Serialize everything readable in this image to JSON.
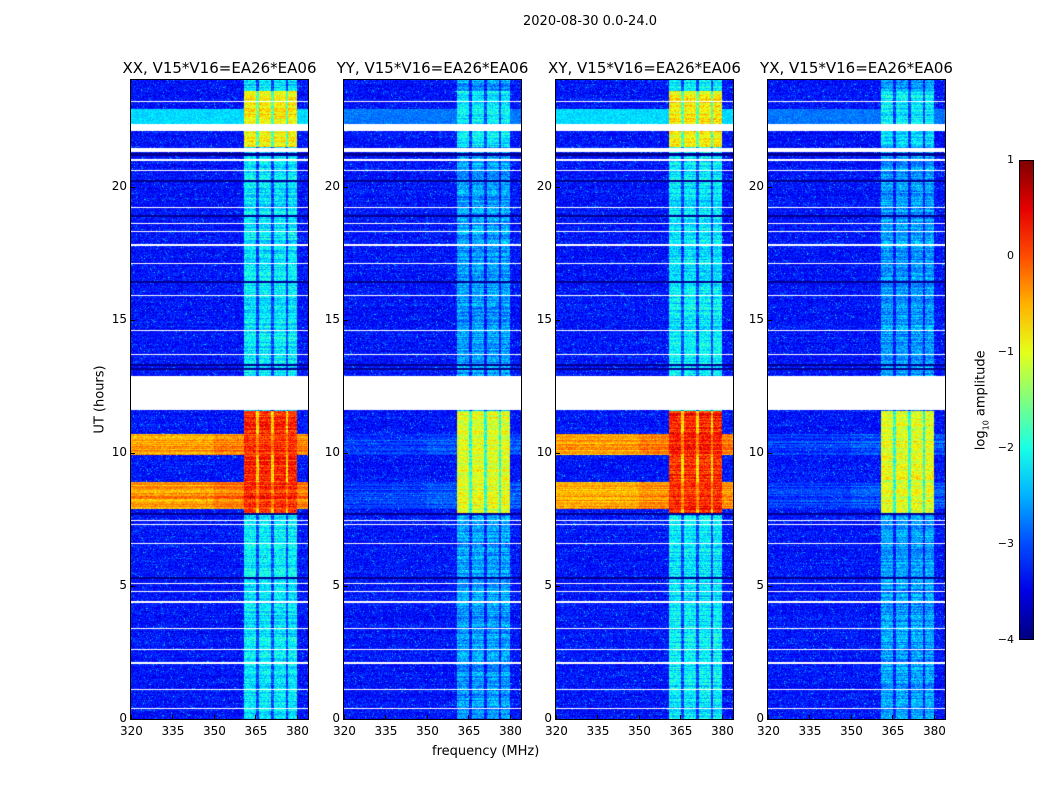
{
  "figure_title": "2020-08-30 0.0-24.0",
  "chart_data": {
    "type": "heatmap",
    "title": "2020-08-30 0.0-24.0",
    "xlabel": "frequency (MHz)",
    "ylabel": "UT (hours)",
    "xlim": [
      320,
      384
    ],
    "ylim": [
      0,
      24
    ],
    "xticks": [
      320,
      335,
      350,
      365,
      380
    ],
    "xtick_labels": [
      "320",
      "335",
      "350",
      "365",
      "380"
    ],
    "yticks": [
      0,
      5,
      10,
      15,
      20
    ],
    "ytick_labels": [
      "0",
      "5",
      "10",
      "15",
      "20"
    ],
    "colorbar": {
      "label_prefix": "log",
      "label_sub": "10",
      "label_suffix": " amplitude",
      "range": [
        -4,
        1
      ],
      "ticks": [
        1,
        0,
        -1,
        -2,
        -3,
        -4
      ],
      "tick_labels": [
        "1",
        "0",
        "−1",
        "−2",
        "−3",
        "−4"
      ],
      "colormap": "jet"
    },
    "background_level": -3.3,
    "rfi_band_mhz": [
      361,
      380
    ],
    "flagged_hours": [
      [
        11.6,
        12.9
      ],
      [
        22.1,
        22.35
      ],
      [
        21.3,
        21.45
      ]
    ],
    "flagged_lines_hours": [
      0.4,
      1.1,
      2.1,
      2.6,
      3.4,
      4.4,
      4.8,
      5.1,
      6.6,
      7.3,
      7.45,
      13.7,
      14.6,
      15.9,
      17.1,
      17.8,
      18.3,
      18.6,
      19.2,
      20.6,
      21.0,
      23.2
    ],
    "panels": [
      {
        "title": "XX, V15*V16=EA26*EA06",
        "band_level": -2.2,
        "storm_band_level": 0.2,
        "storm_broadband_level": -0.2,
        "late_band_level": -0.8
      },
      {
        "title": "YY, V15*V16=EA26*EA06",
        "band_level": -2.6,
        "storm_band_level": -1.0,
        "storm_broadband_level": -3.0,
        "late_band_level": -2.2
      },
      {
        "title": "XY, V15*V16=EA26*EA06",
        "band_level": -2.2,
        "storm_band_level": 0.2,
        "storm_broadband_level": -0.3,
        "late_band_level": -0.8
      },
      {
        "title": "YX, V15*V16=EA26*EA06",
        "band_level": -2.6,
        "storm_band_level": -1.0,
        "storm_broadband_level": -3.0,
        "late_band_level": -2.2
      }
    ]
  }
}
